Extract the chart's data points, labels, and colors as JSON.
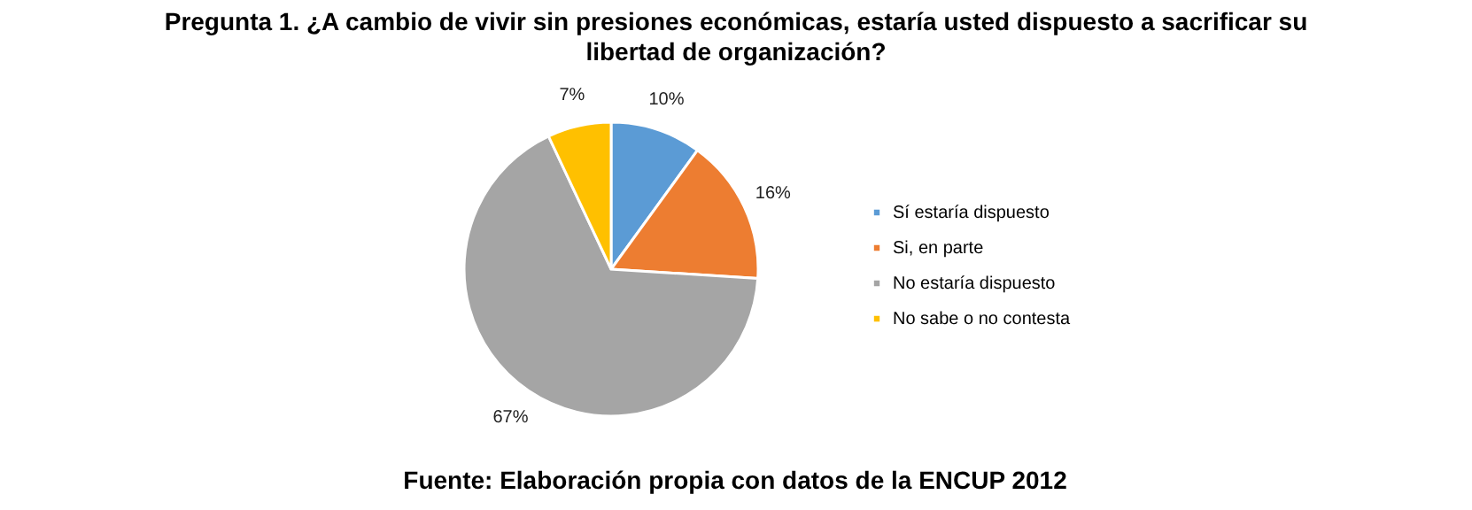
{
  "chart_data": {
    "type": "pie",
    "title": "Pregunta 1. ¿A cambio de vivir sin presiones económicas, estaría usted dispuesto a sacrificar su libertad de organización?",
    "categories": [
      "Sí estaría dispuesto",
      "Si, en parte",
      "No estaría dispuesto",
      "No sabe o no contesta"
    ],
    "values": [
      10,
      16,
      67,
      7
    ],
    "colors": [
      "#5b9bd5",
      "#ed7d31",
      "#a5a5a5",
      "#ffc000"
    ],
    "value_labels": [
      "10%",
      "16%",
      "67%",
      "7%"
    ],
    "legend": "right",
    "annotations": [
      "Fuente: Elaboración propia con datos de la ENCUP 2012"
    ]
  }
}
